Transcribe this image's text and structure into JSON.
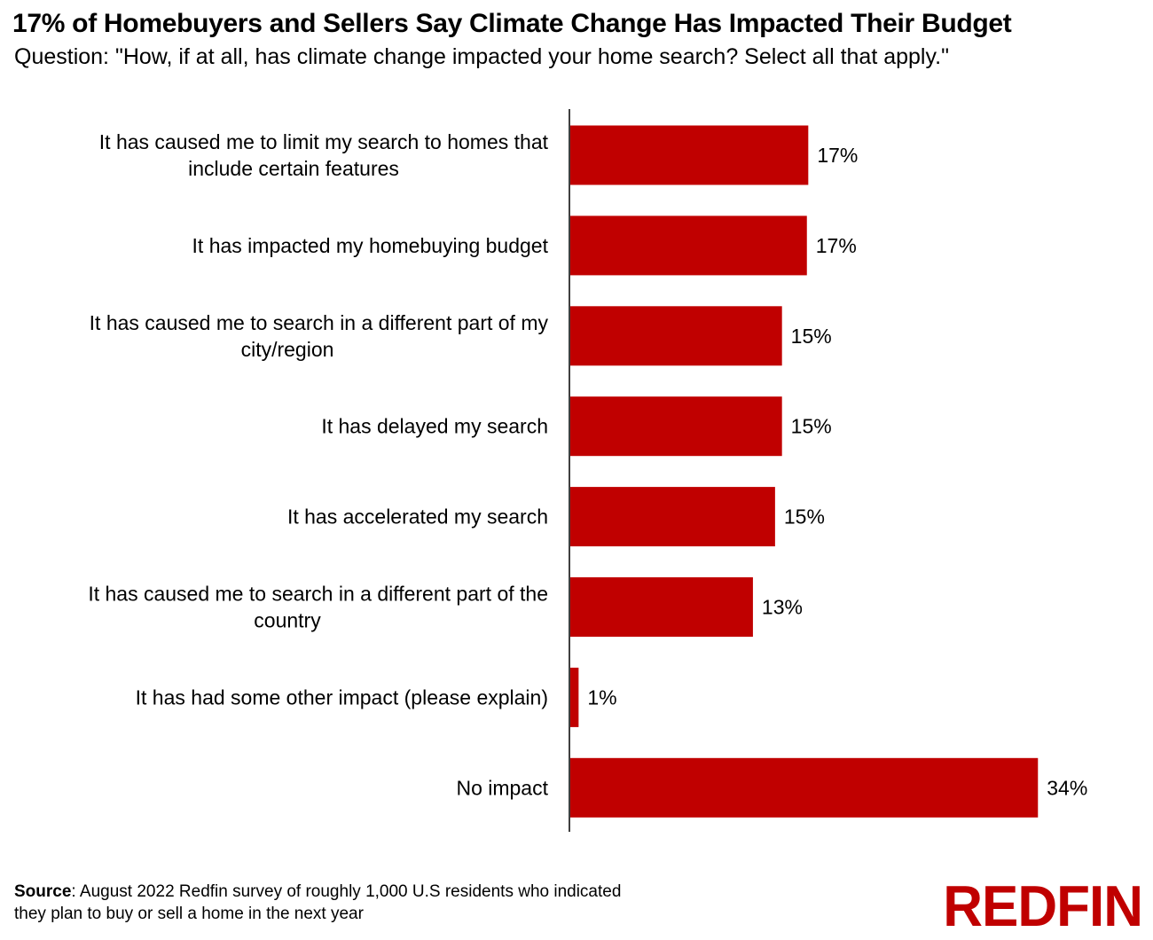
{
  "header": {
    "title": "17% of Homebuyers and Sellers Say Climate Change Has Impacted Their Budget",
    "subtitle": "Question: \"How, if at all, has climate change impacted your home search? Select all that apply.\""
  },
  "chart_data": {
    "type": "bar",
    "orientation": "horizontal",
    "categories": [
      [
        "It has caused me to limit my search to homes that",
        "include certain features"
      ],
      [
        "It has impacted my homebuying budget"
      ],
      [
        "It has caused me to search in a different part of my",
        "city/region"
      ],
      [
        "It has delayed my search"
      ],
      [
        "It has accelerated my search"
      ],
      [
        "It has caused me to search in a different part of the",
        "country"
      ],
      [
        "It has had some other impact (please explain)"
      ],
      [
        "No impact"
      ]
    ],
    "values": [
      17.2,
      17.1,
      15.3,
      15.3,
      14.8,
      13.2,
      0.6,
      33.8
    ],
    "value_labels": [
      "17%",
      "17%",
      "15%",
      "15%",
      "15%",
      "13%",
      "1%",
      "34%"
    ],
    "xlim": [
      0,
      40
    ],
    "bar_color": "#c00000",
    "grid": false,
    "legend": "none"
  },
  "footer": {
    "source_label": "Source",
    "source_text": ": August 2022 Redfin survey of roughly 1,000 U.S residents who indicated they plan to buy or sell a home in the next year",
    "logo": "REDFIN"
  }
}
